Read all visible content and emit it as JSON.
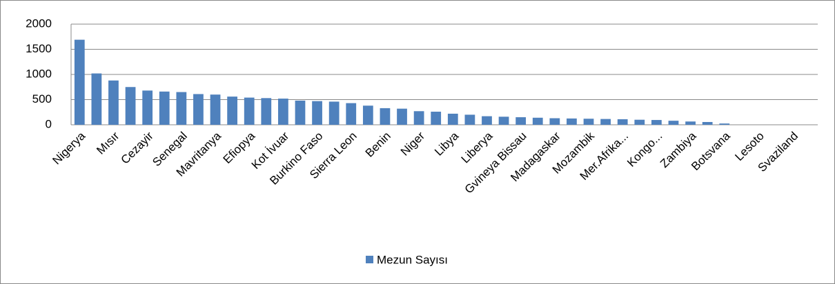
{
  "chart_data": {
    "type": "bar",
    "categories": [
      "Nigerya",
      null,
      "Mısır",
      null,
      "Cezayir",
      null,
      "Senegal",
      null,
      "Mavritanya",
      null,
      "Efiopya",
      null,
      "Kot İvuar",
      null,
      "Burkino Faso",
      null,
      "Sierra Leon",
      null,
      "Benin",
      null,
      "Niger",
      null,
      "Libya",
      null,
      "Liberya",
      null,
      "Gvineya Bissau",
      null,
      "Madagaskar",
      null,
      "Mozambik",
      null,
      "Mer.Afrika...",
      null,
      "Kongo...",
      null,
      "Zambiya",
      null,
      "Botsvana",
      null,
      "Lesoto",
      null,
      "Svaziland",
      null
    ],
    "series": [
      {
        "name": "Mezun Sayısı",
        "color": "#4f81bd",
        "values": [
          1690,
          1020,
          880,
          750,
          680,
          660,
          650,
          610,
          600,
          560,
          540,
          530,
          520,
          480,
          470,
          460,
          430,
          380,
          330,
          320,
          270,
          260,
          220,
          200,
          170,
          160,
          150,
          140,
          130,
          125,
          120,
          115,
          110,
          100,
          95,
          80,
          65,
          55,
          25,
          0,
          0,
          0,
          0,
          0
        ]
      }
    ],
    "ylim": [
      0,
      2000
    ],
    "yticks": [
      0,
      500,
      1000,
      1500,
      2000
    ],
    "grid": true,
    "legend": "bottom"
  }
}
